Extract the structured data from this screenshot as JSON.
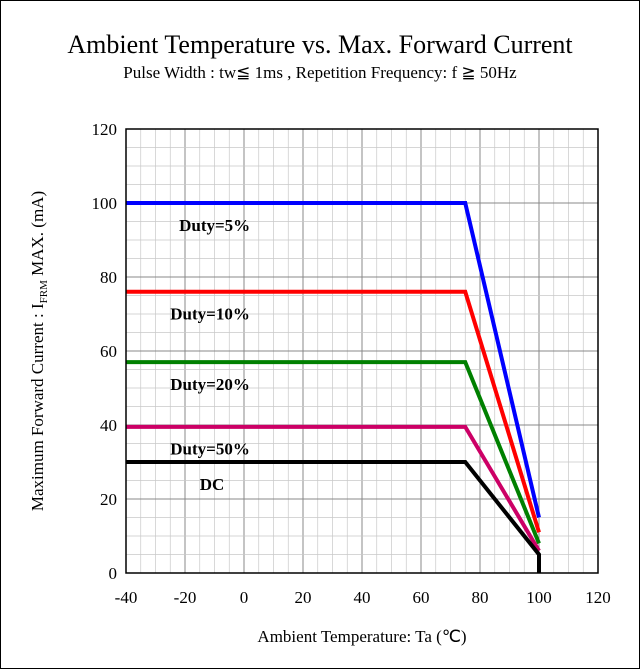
{
  "chart_data": {
    "type": "line",
    "title": "Ambient Temperature vs. Max. Forward Current",
    "subtitle": "Pulse Width : tw≦ 1ms , Repetition  Frequency: f ≧ 50Hz",
    "xlabel": "Ambient Temperature: Ta (℃)",
    "ylabel_prefix": "Maximum Forward Current : I",
    "ylabel_sub": "FRM",
    "ylabel_suffix": " MAX. (mA)",
    "xlim": [
      -40,
      120
    ],
    "ylim": [
      0,
      120
    ],
    "x_ticks": [
      "-40",
      "-20",
      "0",
      "20",
      "40",
      "60",
      "80",
      "100",
      "120"
    ],
    "y_ticks": [
      "0",
      "20",
      "40",
      "60",
      "80",
      "100",
      "120"
    ],
    "grid": true,
    "series": [
      {
        "name": "Duty=5%",
        "color": "#0000ff",
        "x": [
          -40,
          75,
          100
        ],
        "y": [
          100,
          100,
          15
        ]
      },
      {
        "name": "Duty=10%",
        "color": "#ff0000",
        "x": [
          -40,
          75,
          100
        ],
        "y": [
          76,
          76,
          11
        ]
      },
      {
        "name": "Duty=20%",
        "color": "#008000",
        "x": [
          -40,
          75,
          100
        ],
        "y": [
          57,
          57,
          8
        ]
      },
      {
        "name": "Duty=50%",
        "color": "#cc0066",
        "x": [
          -40,
          75,
          100
        ],
        "y": [
          39.5,
          39.5,
          6
        ]
      },
      {
        "name": "DC",
        "color": "#000000",
        "x": [
          -40,
          75,
          100,
          100
        ],
        "y": [
          30,
          30,
          5,
          0
        ]
      }
    ]
  }
}
